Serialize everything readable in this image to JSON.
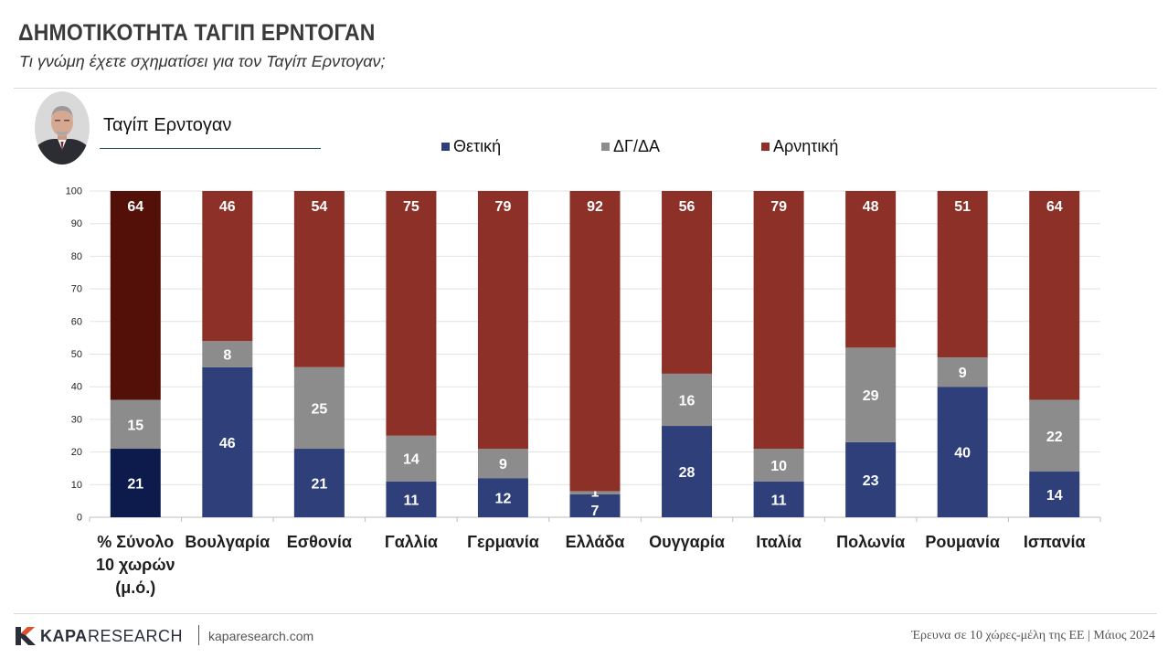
{
  "header": {
    "title": "ΔΗΜΟΤΙΚΟΤΗΤΑ ΤΑΓΙΠ ΕΡΝΤΟΓΑΝ",
    "subtitle": "Τι γνώμη έχετε σχηματίσει για τον Ταγίπ Ερντογαν;"
  },
  "person": {
    "name": "Ταγίπ Ερντογαν"
  },
  "legend": [
    {
      "label": "Θετική",
      "color": "#2e3f7a"
    },
    {
      "label": "ΔΓ/ΔΑ",
      "color": "#8c8c8c"
    },
    {
      "label": "Αρνητική",
      "color": "#8d3128"
    }
  ],
  "chart_data": {
    "type": "bar",
    "stacked": true,
    "categories": [
      [
        "% Σύνολο",
        "10 χωρών",
        "(μ.ό.)"
      ],
      [
        "Βουλγαρία"
      ],
      [
        "Εσθονία"
      ],
      [
        "Γαλλία"
      ],
      [
        "Γερμανία"
      ],
      [
        "Ελλάδα"
      ],
      [
        "Ουγγαρία"
      ],
      [
        "Ιταλία"
      ],
      [
        "Πολωνία"
      ],
      [
        "Ρουμανία"
      ],
      [
        "Ισπανία"
      ]
    ],
    "series": [
      {
        "name": "Θετική",
        "values": [
          21,
          46,
          21,
          11,
          12,
          7,
          28,
          11,
          23,
          40,
          14
        ],
        "color": "#2e3f7a"
      },
      {
        "name": "ΔΓ/ΔΑ",
        "values": [
          15,
          8,
          25,
          14,
          9,
          1,
          16,
          10,
          29,
          9,
          22
        ],
        "color": "#8c8c8c"
      },
      {
        "name": "Αρνητική",
        "values": [
          64,
          46,
          54,
          75,
          79,
          92,
          56,
          79,
          48,
          51,
          64
        ],
        "color": "#8d3128"
      }
    ],
    "highlight_first_colors": [
      "#0d1a4c",
      "#8c8c8c",
      "#531008"
    ],
    "yticks": [
      0,
      10,
      20,
      30,
      40,
      50,
      60,
      70,
      80,
      90,
      100
    ],
    "ylim": [
      0,
      100
    ],
    "grid": true
  },
  "footer": {
    "brand_bold": "KAPA",
    "brand_rest": "RESEARCH",
    "site": "kaparesearch.com",
    "survey": "Έρευνα σε 10 χώρες-μέλη της ΕΕ | ",
    "date": "Μάιος 2024"
  }
}
